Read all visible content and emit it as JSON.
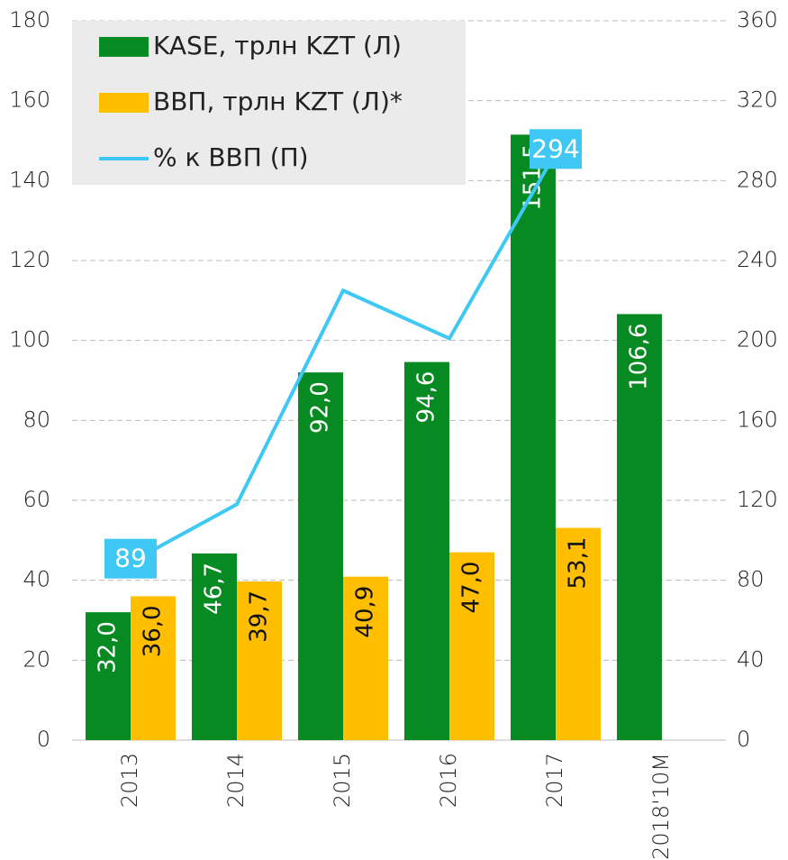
{
  "chart_data": {
    "type": "bar",
    "categories": [
      "2013",
      "2014",
      "2015",
      "2016",
      "2017",
      "2018'10M"
    ],
    "series": [
      {
        "name": "KASE, трлн KZT (Л)",
        "color": "#078a22",
        "type": "bar",
        "values": [
          32.0,
          46.7,
          92.0,
          94.6,
          151.5,
          106.6
        ],
        "value_labels": [
          "32,0",
          "46,7",
          "92,0",
          "94,6",
          "151,5",
          "106,6"
        ]
      },
      {
        "name": "ВВП, трлн KZT (Л)*",
        "color": "#ffbf00",
        "type": "bar",
        "values": [
          36.0,
          39.7,
          40.9,
          47.0,
          53.1,
          null
        ],
        "value_labels": [
          "36,0",
          "39,7",
          "40,9",
          "47,0",
          "53,1",
          null
        ]
      },
      {
        "name": "% к ВВП (П)",
        "color": "#40c8f4",
        "type": "line",
        "axis": "y2",
        "values": [
          89,
          118,
          225,
          201,
          294,
          null
        ],
        "value_labels": [
          "89",
          null,
          null,
          null,
          "294",
          null
        ]
      }
    ],
    "ylim": [
      0,
      180
    ],
    "yticks": [
      0,
      20,
      40,
      60,
      80,
      100,
      120,
      140,
      160,
      180
    ],
    "y2lim": [
      0,
      360
    ],
    "y2ticks": [
      0,
      40,
      80,
      120,
      160,
      200,
      240,
      280,
      320,
      360
    ],
    "grid": true,
    "legend": "top-left"
  }
}
